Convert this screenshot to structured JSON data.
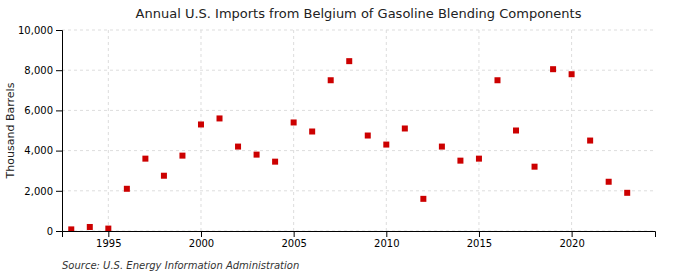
{
  "chart_data": {
    "type": "scatter",
    "title": "Annual U.S. Imports from Belgium of Gasoline Blending Components",
    "ylabel": "Thousand Barrels",
    "source": "Source: U.S. Energy Information Administration",
    "x": [
      1993,
      1994,
      1995,
      1996,
      1997,
      1998,
      1999,
      2000,
      2001,
      2002,
      2003,
      2004,
      2005,
      2006,
      2007,
      2008,
      2009,
      2010,
      2011,
      2012,
      2013,
      2014,
      2015,
      2016,
      2017,
      2018,
      2019,
      2020,
      2021,
      2022,
      2023
    ],
    "values": [
      80,
      200,
      120,
      2100,
      3600,
      2750,
      3750,
      5300,
      5600,
      4200,
      3800,
      3450,
      5400,
      4950,
      7500,
      8450,
      4750,
      4300,
      5100,
      1600,
      4200,
      3500,
      3600,
      7500,
      5000,
      3200,
      8050,
      7800,
      4500,
      2450,
      1900
    ],
    "color": "#cc0000",
    "marker": "square",
    "xlim": [
      1992.5,
      2024.5
    ],
    "xticks": [
      1995,
      2000,
      2005,
      2010,
      2015,
      2020
    ],
    "ylim": [
      0,
      10000
    ],
    "yticks": [
      0,
      {
        "value": 2000,
        "label": "2,000"
      },
      {
        "value": 4000,
        "label": "4,000"
      },
      {
        "value": 6000,
        "label": "6,000"
      },
      {
        "value": 8000,
        "label": "8,000"
      },
      {
        "value": 10000,
        "label": "10,000"
      }
    ],
    "grid": true
  }
}
